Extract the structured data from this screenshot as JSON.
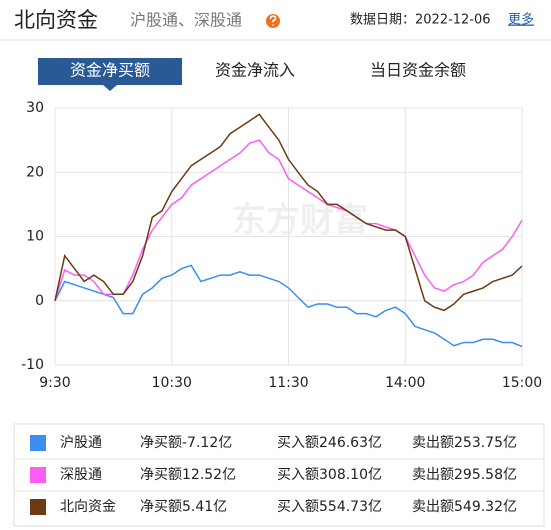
{
  "header": {
    "title": "北向资金",
    "subtitle": "沪股通、深股通",
    "date": "数据日期：2022-12-06",
    "more": "更多"
  },
  "tabs": {
    "items": [
      "资金净买额",
      "资金净流入",
      "当日资金余额"
    ],
    "active": 0
  },
  "chart_data": {
    "type": "line",
    "watermark": "东方财富",
    "x": [
      0,
      5,
      10,
      15,
      20,
      25,
      30,
      35,
      40,
      45,
      50,
      55,
      60,
      65,
      70,
      75,
      80,
      85,
      90,
      95,
      100,
      105,
      110,
      115,
      120,
      125,
      130,
      135,
      140,
      145,
      150,
      155,
      160,
      165,
      170,
      175,
      180,
      185,
      190,
      195,
      200,
      205,
      210,
      215,
      220,
      225,
      230,
      235,
      240
    ],
    "xlim": [
      0,
      240
    ],
    "xticks": [
      {
        "value": 0,
        "label": "9:30"
      },
      {
        "value": 60,
        "label": "10:30"
      },
      {
        "value": 120,
        "label": "11:30"
      },
      {
        "value": 180,
        "label": "14:00"
      },
      {
        "value": 240,
        "label": "15:00"
      }
    ],
    "ylim": [
      -10,
      30
    ],
    "yticks": [
      -10,
      0,
      10,
      20,
      30
    ],
    "grid": true,
    "series": [
      {
        "name": "沪股通",
        "color": "#3b8ef0",
        "values": [
          0,
          3,
          2.5,
          2,
          1.5,
          1,
          0.5,
          -2,
          -2,
          1,
          2,
          3.5,
          4,
          5,
          5.5,
          3,
          3.5,
          4,
          4,
          4.5,
          4,
          4,
          3.5,
          3,
          2,
          0.5,
          -1,
          -0.5,
          -0.5,
          -1,
          -1,
          -2,
          -2,
          -2.5,
          -1.5,
          -1,
          -2,
          -4,
          -4.5,
          -5,
          -6,
          -7,
          -6.5,
          -6.5,
          -6,
          -6,
          -6.5,
          -6.5,
          -7.12
        ]
      },
      {
        "name": "深股通",
        "color": "#ff5cf4",
        "values": [
          0,
          4.8,
          4,
          4,
          3,
          1,
          1,
          1,
          4,
          8,
          11,
          13,
          15,
          16,
          18,
          19,
          20,
          21,
          22,
          23,
          24.5,
          25,
          23,
          22,
          19,
          18,
          17,
          16,
          15,
          14.5,
          14,
          13,
          12,
          12,
          11.5,
          11,
          10,
          7,
          4,
          2,
          1.5,
          2.5,
          3,
          4,
          6,
          7,
          8,
          10,
          12.52
        ]
      },
      {
        "name": "北向资金",
        "color": "#6b3a12",
        "values": [
          0,
          7,
          5,
          3,
          4,
          3,
          1,
          1,
          3,
          7,
          13,
          14,
          17,
          19,
          21,
          22,
          23,
          24,
          26,
          27,
          28,
          29,
          27,
          25,
          22,
          20,
          18,
          17,
          15,
          15,
          14,
          13,
          12,
          11.5,
          11,
          11,
          10,
          5,
          0,
          -1,
          -1.5,
          -0.5,
          1,
          1.5,
          2,
          3,
          3.5,
          4,
          5.41
        ]
      }
    ]
  },
  "summary": {
    "labels": {
      "net": "净买额",
      "buy": "买入额",
      "sell": "卖出额"
    },
    "buy_color": "#e02020",
    "sell_color": "#1a9a1a",
    "rows": [
      {
        "net": "-7.12亿",
        "net_color": "#1a9a1a",
        "buy": "246.63亿",
        "sell": "253.75亿"
      },
      {
        "net": "12.52亿",
        "net_color": "#e02020",
        "buy": "308.10亿",
        "sell": "295.58亿"
      },
      {
        "net": "5.41亿",
        "net_color": "#e02020",
        "buy": "554.73亿",
        "sell": "549.32亿"
      }
    ]
  }
}
